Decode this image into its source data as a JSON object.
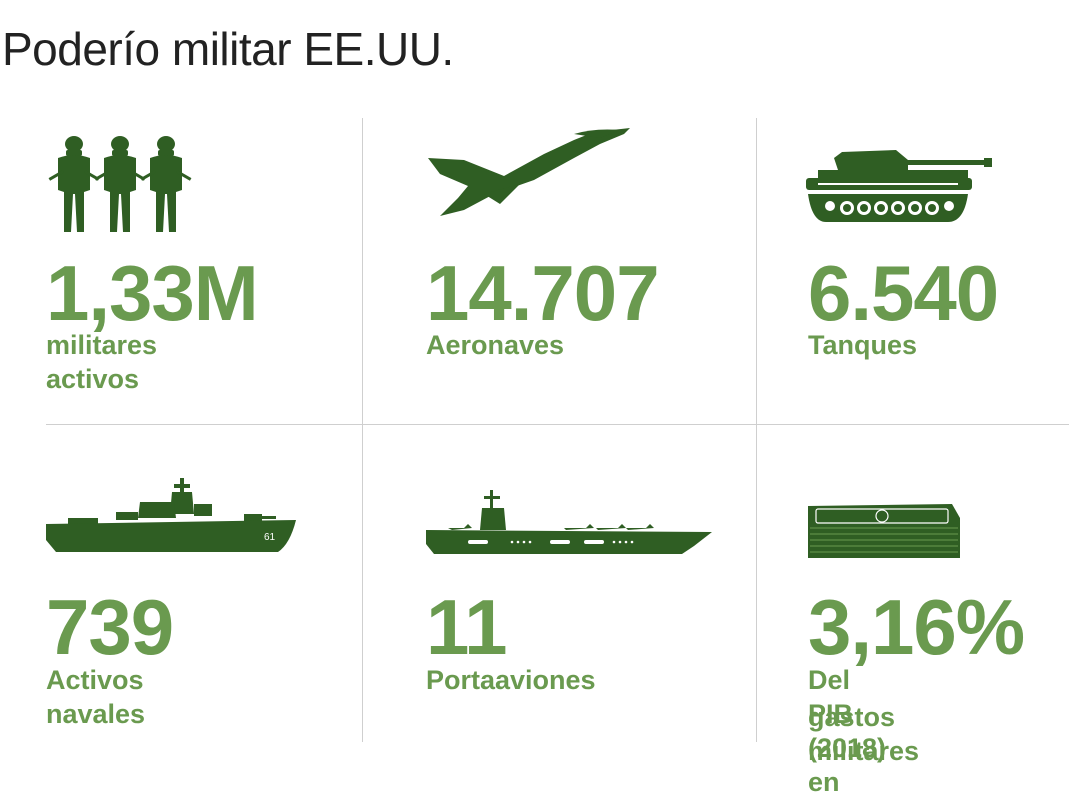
{
  "title": "Poderío militar EE.UU.",
  "colors": {
    "accent": "#6a9a4f",
    "icon": "#2f5e23",
    "divider": "#cfcfcf",
    "title": "#222222"
  },
  "stats": [
    {
      "icon": "soldiers-icon",
      "value": "1,33M",
      "label": "militares activos"
    },
    {
      "icon": "fighter-jet-icon",
      "value": "14.707",
      "label": "Aeronaves"
    },
    {
      "icon": "tank-icon",
      "value": "6.540",
      "label": "Tanques"
    },
    {
      "icon": "warship-icon",
      "value": "739",
      "label": "Activos navales"
    },
    {
      "icon": "aircraft-carrier-icon",
      "value": "11",
      "label": "Portaaviones"
    },
    {
      "icon": "money-stack-icon",
      "value": "3,16%",
      "label_line1": "Del PIB (2018) en",
      "label_line2": "gastos militares"
    }
  ]
}
